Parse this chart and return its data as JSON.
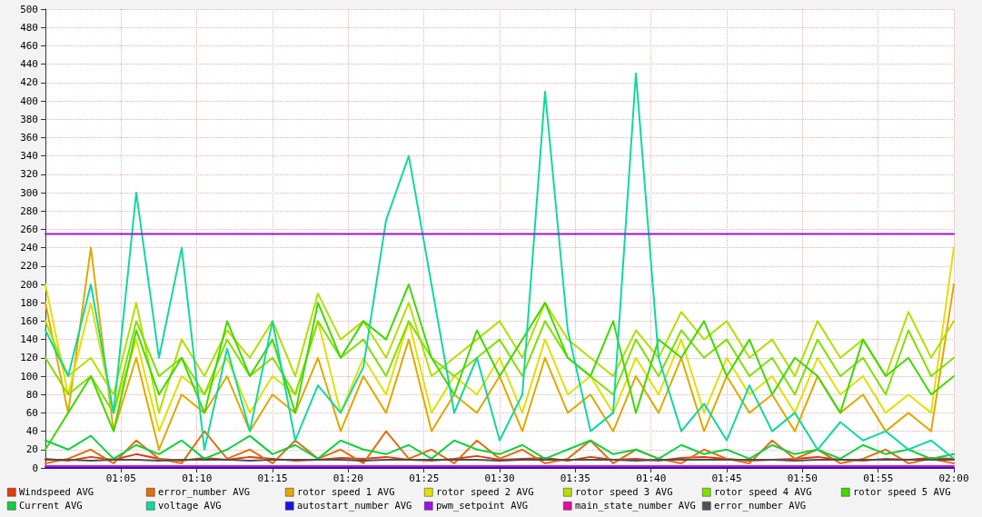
{
  "chart_data": {
    "type": "line",
    "x": [
      1.0,
      1.025,
      1.05,
      1.075,
      1.1,
      1.125,
      1.15,
      1.175,
      1.2,
      1.225,
      1.25,
      1.275,
      1.3,
      1.325,
      1.35,
      1.375,
      1.4,
      1.425,
      1.45,
      1.475,
      1.5,
      1.525,
      1.55,
      1.575,
      1.6,
      1.625,
      1.65,
      1.675,
      1.7,
      1.725,
      1.75,
      1.775,
      1.8,
      1.825,
      1.85,
      1.875,
      1.9,
      1.925,
      1.95,
      1.975,
      2.0
    ],
    "xlim": [
      1.0,
      2.0
    ],
    "xticks": [
      {
        "value": 1.0833,
        "label": "01:05"
      },
      {
        "value": 1.1667,
        "label": "01:10"
      },
      {
        "value": 1.25,
        "label": "01:15"
      },
      {
        "value": 1.3333,
        "label": "01:20"
      },
      {
        "value": 1.4167,
        "label": "01:25"
      },
      {
        "value": 1.5,
        "label": "01:30"
      },
      {
        "value": 1.5833,
        "label": "01:35"
      },
      {
        "value": 1.6667,
        "label": "01:40"
      },
      {
        "value": 1.75,
        "label": "01:45"
      },
      {
        "value": 1.8333,
        "label": "01:50"
      },
      {
        "value": 1.9167,
        "label": "01:55"
      },
      {
        "value": 2.0,
        "label": "02:00"
      }
    ],
    "ylim": [
      0,
      500
    ],
    "yticks": [
      0,
      20,
      40,
      60,
      80,
      100,
      120,
      140,
      160,
      180,
      200,
      220,
      240,
      260,
      280,
      300,
      320,
      340,
      360,
      380,
      400,
      420,
      440,
      460,
      480,
      500
    ],
    "grid": true,
    "legend": "bottom",
    "marker": "none",
    "line_style": "solid",
    "series": [
      {
        "name": "Windspeed AVG",
        "color": "#e03a10",
        "values": [
          10,
          8,
          12,
          9,
          15,
          10,
          8,
          11,
          9,
          12,
          10,
          8,
          9,
          11,
          10,
          12,
          9,
          8,
          10,
          13,
          9,
          10,
          11,
          8,
          12,
          9,
          10,
          8,
          11,
          12,
          10,
          8,
          9,
          10,
          12,
          9,
          8,
          10,
          9,
          11,
          10
        ]
      },
      {
        "name": "error_number AVG",
        "color": "#e07010",
        "values": [
          5,
          10,
          20,
          5,
          30,
          10,
          5,
          40,
          10,
          20,
          5,
          30,
          10,
          20,
          5,
          40,
          10,
          20,
          5,
          30,
          10,
          20,
          5,
          10,
          30,
          5,
          20,
          10,
          5,
          20,
          10,
          5,
          30,
          10,
          20,
          5,
          10,
          20,
          5,
          10,
          5
        ]
      },
      {
        "name": "rotor speed 1 AVG",
        "color": "#e0a800",
        "values": [
          180,
          60,
          240,
          40,
          120,
          20,
          80,
          60,
          100,
          40,
          80,
          60,
          120,
          40,
          100,
          60,
          140,
          40,
          80,
          60,
          100,
          40,
          120,
          60,
          80,
          40,
          100,
          60,
          120,
          40,
          100,
          60,
          80,
          40,
          100,
          60,
          80,
          40,
          60,
          40,
          200
        ]
      },
      {
        "name": "rotor speed 2 AVG",
        "color": "#e0e000",
        "values": [
          200,
          80,
          180,
          60,
          140,
          40,
          100,
          80,
          120,
          60,
          100,
          80,
          160,
          60,
          120,
          80,
          160,
          60,
          100,
          80,
          120,
          60,
          140,
          80,
          100,
          60,
          120,
          80,
          140,
          60,
          120,
          80,
          100,
          60,
          120,
          80,
          100,
          60,
          80,
          60,
          240
        ]
      },
      {
        "name": "rotor speed 3 AVG",
        "color": "#b0e000",
        "values": [
          160,
          100,
          120,
          80,
          180,
          60,
          140,
          100,
          150,
          120,
          160,
          100,
          190,
          140,
          160,
          120,
          180,
          100,
          120,
          140,
          160,
          120,
          180,
          140,
          120,
          100,
          150,
          120,
          170,
          140,
          160,
          120,
          140,
          100,
          160,
          120,
          140,
          100,
          170,
          120,
          160
        ]
      },
      {
        "name": "rotor speed 4 AVG",
        "color": "#80e000",
        "values": [
          120,
          80,
          100,
          60,
          160,
          100,
          120,
          80,
          140,
          100,
          120,
          80,
          160,
          120,
          140,
          100,
          160,
          120,
          100,
          120,
          140,
          100,
          160,
          120,
          100,
          80,
          140,
          100,
          150,
          120,
          140,
          100,
          120,
          80,
          140,
          100,
          120,
          80,
          150,
          100,
          120
        ]
      },
      {
        "name": "rotor speed 5 AVG",
        "color": "#40d800",
        "values": [
          20,
          60,
          100,
          40,
          150,
          80,
          120,
          60,
          160,
          100,
          140,
          60,
          180,
          120,
          160,
          140,
          200,
          120,
          80,
          150,
          100,
          140,
          180,
          120,
          100,
          160,
          60,
          140,
          120,
          160,
          100,
          140,
          80,
          120,
          100,
          60,
          140,
          100,
          120,
          80,
          100
        ]
      },
      {
        "name": "Current AVG",
        "color": "#10d040",
        "values": [
          30,
          20,
          35,
          10,
          25,
          15,
          30,
          10,
          20,
          35,
          15,
          25,
          10,
          30,
          20,
          15,
          25,
          10,
          30,
          20,
          15,
          25,
          10,
          20,
          30,
          15,
          20,
          10,
          25,
          15,
          20,
          10,
          25,
          15,
          20,
          10,
          25,
          15,
          20,
          10,
          15
        ]
      },
      {
        "name": "voltage AVG",
        "color": "#10d8a0",
        "values": [
          150,
          100,
          200,
          60,
          300,
          120,
          240,
          20,
          130,
          40,
          160,
          30,
          90,
          60,
          110,
          270,
          340,
          200,
          60,
          120,
          30,
          80,
          410,
          150,
          40,
          60,
          430,
          120,
          40,
          70,
          30,
          90,
          40,
          60,
          20,
          50,
          30,
          40,
          20,
          30,
          10
        ]
      },
      {
        "name": "autostart_number AVG",
        "color": "#2010e0",
        "values": [
          0,
          0,
          0,
          0,
          0,
          0,
          0,
          0,
          0,
          0,
          0,
          0,
          0,
          0,
          0,
          0,
          0,
          0,
          0,
          0,
          0,
          0,
          0,
          0,
          0,
          0,
          0,
          0,
          0,
          0,
          0,
          0,
          0,
          0,
          0,
          0,
          0,
          0,
          0,
          0,
          0
        ]
      },
      {
        "name": "pwm_setpoint AVG",
        "color": "#a010e0",
        "values": [
          255,
          255,
          255,
          255,
          255,
          255,
          255,
          255,
          255,
          255,
          255,
          255,
          255,
          255,
          255,
          255,
          255,
          255,
          255,
          255,
          255,
          255,
          255,
          255,
          255,
          255,
          255,
          255,
          255,
          255,
          255,
          255,
          255,
          255,
          255,
          255,
          255,
          255,
          255,
          255,
          255
        ]
      },
      {
        "name": "main_state_number AVG",
        "color": "#e010a0",
        "values": [
          2,
          2,
          2,
          2,
          2,
          2,
          2,
          2,
          2,
          2,
          2,
          2,
          2,
          2,
          2,
          2,
          2,
          2,
          2,
          2,
          2,
          2,
          2,
          2,
          2,
          2,
          2,
          2,
          2,
          2,
          2,
          2,
          2,
          2,
          2,
          2,
          2,
          2,
          2,
          2,
          2
        ]
      },
      {
        "name": "error_number AVG",
        "color": "#505050",
        "values": [
          9,
          9,
          8,
          9,
          9,
          8,
          9,
          9,
          9,
          8,
          9,
          9,
          9,
          9,
          8,
          9,
          9,
          9,
          9,
          9,
          8,
          9,
          9,
          9,
          9,
          9,
          8,
          9,
          9,
          9,
          9,
          9,
          9,
          8,
          9,
          9,
          9,
          9,
          9,
          9,
          9
        ]
      }
    ]
  }
}
